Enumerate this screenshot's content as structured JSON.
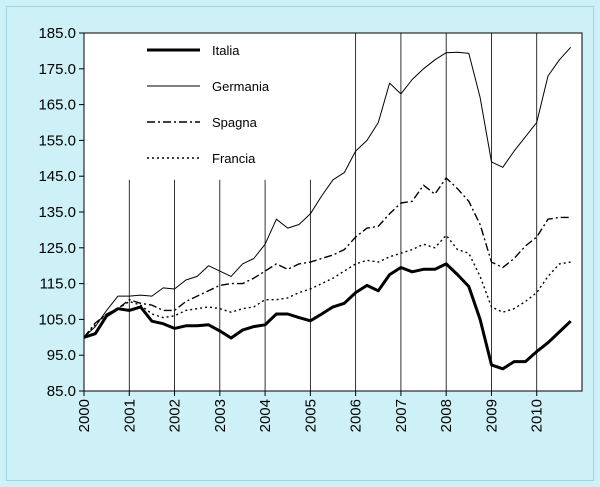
{
  "chart_data": {
    "type": "line",
    "title": "",
    "xlabel": "",
    "ylabel": "",
    "ylim": [
      85,
      185
    ],
    "xlim": [
      2000,
      2011
    ],
    "y_ticks": [
      "85.0",
      "95.0",
      "105.0",
      "115.0",
      "125.0",
      "135.0",
      "145.0",
      "155.0",
      "165.0",
      "175.0",
      "185.0"
    ],
    "x_ticks": [
      "2000",
      "2001",
      "2002",
      "2003",
      "2004",
      "2005",
      "2006",
      "2007",
      "2008",
      "2009",
      "2010"
    ],
    "grid": "vertical lines at years 2001-2010",
    "legend_position": "top-left",
    "colors": {
      "plot_bg": "#ffffff",
      "page_bg": "#cdf1f7",
      "line": "#000000"
    },
    "series": [
      {
        "name": "Italia",
        "style": "solid-thick",
        "x": [
          2000.0,
          2000.25,
          2000.5,
          2000.75,
          2001.0,
          2001.25,
          2001.5,
          2001.75,
          2002.0,
          2002.25,
          2002.5,
          2002.75,
          2003.0,
          2003.25,
          2003.5,
          2003.75,
          2004.0,
          2004.25,
          2004.5,
          2004.75,
          2005.0,
          2005.25,
          2005.5,
          2005.75,
          2006.0,
          2006.25,
          2006.5,
          2006.75,
          2007.0,
          2007.25,
          2007.5,
          2007.75,
          2008.0,
          2008.25,
          2008.5,
          2008.75,
          2009.0,
          2009.25,
          2009.5,
          2009.75,
          2010.0,
          2010.25,
          2010.5,
          2010.75
        ],
        "values": [
          100.0,
          101.0,
          106.0,
          108.0,
          107.5,
          108.5,
          104.5,
          103.8,
          102.5,
          103.2,
          103.2,
          103.5,
          101.8,
          99.8,
          102.0,
          103.0,
          103.5,
          106.5,
          106.5,
          105.5,
          104.6,
          106.5,
          108.5,
          109.5,
          112.5,
          114.5,
          113.0,
          117.5,
          119.5,
          118.3,
          119.0,
          119.0,
          120.5,
          117.5,
          114.2,
          105.0,
          92.3,
          91.2,
          93.2,
          93.2,
          96.0,
          98.5,
          101.5,
          104.5
        ]
      },
      {
        "name": "Germania",
        "style": "solid-thin",
        "x": [
          2000.0,
          2000.25,
          2000.5,
          2000.75,
          2001.0,
          2001.25,
          2001.5,
          2001.75,
          2002.0,
          2002.25,
          2002.5,
          2002.75,
          2003.0,
          2003.25,
          2003.5,
          2003.75,
          2004.0,
          2004.25,
          2004.5,
          2004.75,
          2005.0,
          2005.25,
          2005.5,
          2005.75,
          2006.0,
          2006.25,
          2006.5,
          2006.75,
          2007.0,
          2007.25,
          2007.5,
          2007.75,
          2008.0,
          2008.25,
          2008.5,
          2008.75,
          2009.0,
          2009.25,
          2009.5,
          2009.75,
          2010.0,
          2010.25,
          2010.5,
          2010.75
        ],
        "values": [
          100.0,
          103.0,
          107.5,
          111.5,
          111.5,
          111.8,
          111.5,
          113.8,
          113.5,
          116.0,
          117.0,
          120.0,
          118.5,
          117.0,
          120.5,
          122.0,
          126.0,
          133.0,
          130.5,
          131.5,
          134.5,
          139.5,
          144.0,
          146.0,
          152.0,
          155.0,
          160.0,
          171.0,
          168.0,
          172.0,
          175.0,
          177.5,
          179.5,
          179.6,
          179.3,
          167.0,
          149.0,
          147.5,
          152.0,
          156.0,
          160.0,
          173.0,
          177.5,
          181.0
        ]
      },
      {
        "name": "Spagna",
        "style": "dash-dot",
        "x": [
          2000.0,
          2000.25,
          2000.5,
          2000.75,
          2001.0,
          2001.25,
          2001.5,
          2001.75,
          2002.0,
          2002.25,
          2002.5,
          2002.75,
          2003.0,
          2003.25,
          2003.5,
          2003.75,
          2004.0,
          2004.25,
          2004.5,
          2004.75,
          2005.0,
          2005.25,
          2005.5,
          2005.75,
          2006.0,
          2006.25,
          2006.5,
          2006.75,
          2007.0,
          2007.25,
          2007.5,
          2007.75,
          2008.0,
          2008.25,
          2008.5,
          2008.75,
          2009.0,
          2009.25,
          2009.5,
          2009.75,
          2010.0,
          2010.25,
          2010.5,
          2010.75
        ],
        "values": [
          100.0,
          104.0,
          106.5,
          108.0,
          110.5,
          109.5,
          109.0,
          107.5,
          107.5,
          110.0,
          111.5,
          113.0,
          114.5,
          115.0,
          115.0,
          116.5,
          118.5,
          120.5,
          119.0,
          120.5,
          121.0,
          122.0,
          123.0,
          124.5,
          128.0,
          130.5,
          131.0,
          134.5,
          137.5,
          138.0,
          142.5,
          140.0,
          144.5,
          141.5,
          138.0,
          131.5,
          121.0,
          119.5,
          122.0,
          125.5,
          128.0,
          133.0,
          133.5,
          133.5
        ]
      },
      {
        "name": "Francia",
        "style": "dotted",
        "x": [
          2000.0,
          2000.25,
          2000.5,
          2000.75,
          2001.0,
          2001.25,
          2001.5,
          2001.75,
          2002.0,
          2002.25,
          2002.5,
          2002.75,
          2003.0,
          2003.25,
          2003.5,
          2003.75,
          2004.0,
          2004.25,
          2004.5,
          2004.75,
          2005.0,
          2005.25,
          2005.5,
          2005.75,
          2006.0,
          2006.25,
          2006.5,
          2006.75,
          2007.0,
          2007.25,
          2007.5,
          2007.75,
          2008.0,
          2008.25,
          2008.5,
          2008.75,
          2009.0,
          2009.25,
          2009.5,
          2009.75,
          2010.0,
          2010.25,
          2010.5,
          2010.75
        ],
        "values": [
          100.0,
          103.5,
          106.5,
          108.0,
          110.0,
          109.0,
          106.5,
          105.5,
          106.0,
          107.5,
          108.0,
          108.5,
          108.0,
          107.0,
          108.0,
          108.5,
          110.5,
          110.5,
          111.0,
          112.5,
          113.5,
          115.0,
          116.5,
          118.5,
          120.5,
          121.5,
          121.0,
          122.5,
          123.5,
          124.5,
          126.0,
          125.0,
          128.5,
          124.5,
          123.5,
          117.0,
          108.5,
          107.0,
          108.0,
          110.0,
          112.5,
          117.0,
          120.5,
          121.0
        ]
      }
    ]
  }
}
